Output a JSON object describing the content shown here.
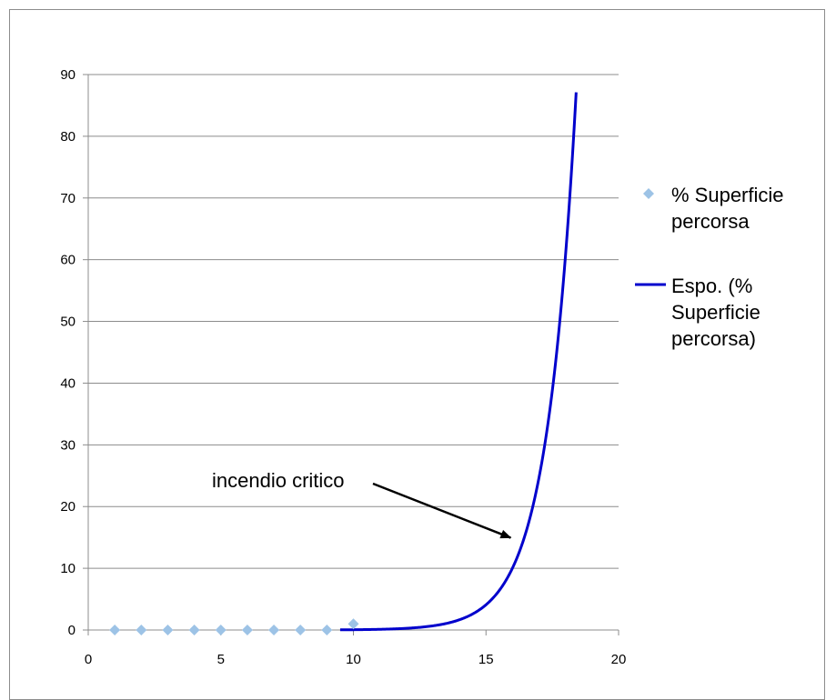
{
  "chart_data": {
    "type": "scatter",
    "title": "",
    "xlabel": "",
    "ylabel": "",
    "xlim": [
      0,
      20
    ],
    "ylim": [
      0,
      90
    ],
    "x_ticks": [
      0,
      5,
      10,
      15,
      20
    ],
    "y_ticks": [
      0,
      10,
      20,
      30,
      40,
      50,
      60,
      70,
      80,
      90
    ],
    "grid": "horizontal",
    "legend_position": "right",
    "series": [
      {
        "name": "% Superficie percorsa",
        "kind": "markers",
        "marker": "diamond",
        "color": "#9dc3e6",
        "x": [
          1,
          2,
          3,
          4,
          5,
          6,
          7,
          8,
          9,
          10
        ],
        "y": [
          0,
          0,
          0,
          0,
          0,
          0,
          0,
          0,
          0,
          1
        ]
      },
      {
        "name": "Espo. (% Superficie percorsa)",
        "kind": "trendline",
        "color": "#0000cc",
        "model": "exponential",
        "a": 5.6e-06,
        "b": 0.9,
        "x_range": [
          9.5,
          18.4
        ]
      }
    ],
    "legend": [
      {
        "lines": [
          "% Superficie",
          "percorsa"
        ],
        "series": 0
      },
      {
        "lines": [
          "Espo. (%",
          "Superficie",
          "percorsa)"
        ],
        "series": 1
      }
    ],
    "annotations": [
      {
        "text": "incendio critico",
        "points_to": {
          "x": 16,
          "y": 14.5
        }
      }
    ]
  }
}
